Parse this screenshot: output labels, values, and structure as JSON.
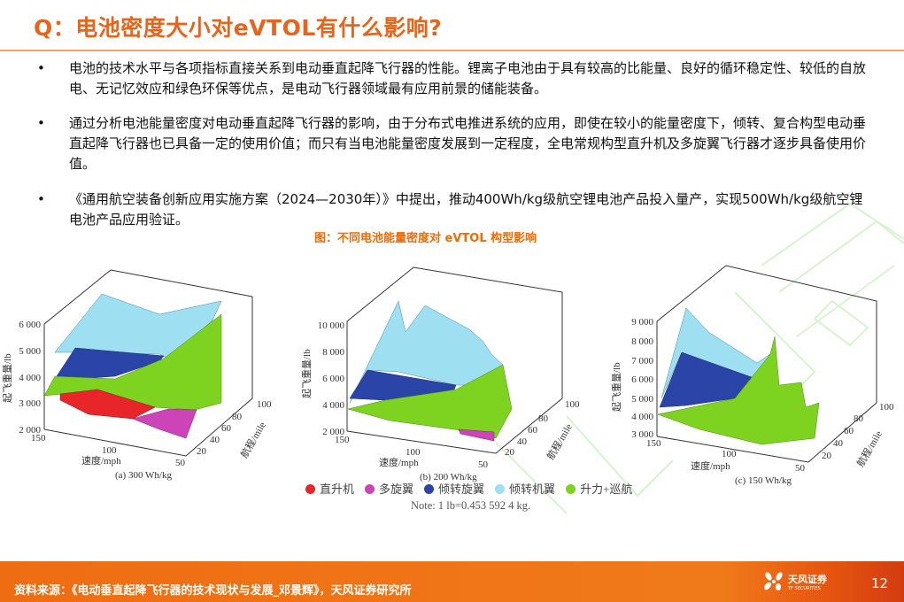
{
  "title": "Q：电池密度大小对eVTOL有什么影响?",
  "bullets": [
    {
      "symbol": "•",
      "text": "电池的技术水平与各项指标直接关系到电动垂直起降飞行器的性能。锂离子电池由于具有较高的比能量、良好的循环稳定性、较低的自放电、无记忆效应和绿色环保等优点，是电动飞行器领域最有应用前景的储能装备。"
    },
    {
      "symbol": "•",
      "text": "通过分析电池能量密度对电动垂直起降飞行器的影响，由于分布式电推进系统的应用，即使在较小的能量密度下，倾转、复合构型电动垂直起降飞行器也已具备一定的使用价值；而只有当电池能量密度发展到一定程度，全电常规构型直升机及多旋翼飞行器才逐步具备使用价值。"
    },
    {
      "symbol": "•",
      "text": "《通用航空装备创新应用实施方案（2024—2030年）》中提出，推动400Wh/kg级航空锂电池产品投入量产，实现500Wh/kg级航空锂电池产品应用验证。"
    }
  ],
  "figure_caption": "图：不同电池能量密度对 eVTOL 构型影响",
  "charts": [
    {
      "caption": "(a) 300 Wh/kg",
      "ylabel": "起飞重量/lb",
      "xlabel": "速度/mph",
      "zlabel": "航程/mile",
      "yticks": [
        "6 000",
        "5 000",
        "4 000",
        "3 000",
        "2 000"
      ],
      "xticks": [
        "150",
        "100",
        "50"
      ],
      "zticks": [
        "20",
        "40",
        "60",
        "80",
        "100"
      ]
    },
    {
      "caption": "(b) 200 Wh/kg",
      "ylabel": "起飞重量/lb",
      "xlabel": "速度/mph",
      "zlabel": "航程/mile",
      "yticks": [
        "10 000",
        "8 000",
        "6 000",
        "4 000",
        "2 000"
      ],
      "xticks": [
        "150",
        "100",
        "50"
      ],
      "zticks": [
        "20",
        "40",
        "60",
        "80",
        "100"
      ]
    },
    {
      "caption": "(c) 150 Wh/kg",
      "ylabel": "起飞重量/lb",
      "xlabel": "速度/mph",
      "zlabel": "航程/mile",
      "yticks": [
        "9 000",
        "8 000",
        "7 000",
        "6 000",
        "5 000",
        "4 000",
        "3 000"
      ],
      "xticks": [
        "150",
        "100",
        "50"
      ],
      "zticks": [
        "20",
        "40",
        "60",
        "80",
        "100"
      ]
    }
  ],
  "legend": [
    {
      "label": "直升机",
      "color": "#e8262a"
    },
    {
      "label": "多旋翼",
      "color": "#cc44b8"
    },
    {
      "label": "倾转旋翼",
      "color": "#2b44a8"
    },
    {
      "label": "倾转机翼",
      "color": "#9fdff2"
    },
    {
      "label": "升力+巡航",
      "color": "#7ed321"
    }
  ],
  "note": "Note: 1 lb=0.453 592 4 kg.",
  "footer": {
    "source": "资料来源：《电动垂直起降飞行器的技术现状与发展_邓景辉》，天风证券研究所",
    "logo_name": "天风证券",
    "logo_en": "TF SECURITIES",
    "page": "12"
  }
}
